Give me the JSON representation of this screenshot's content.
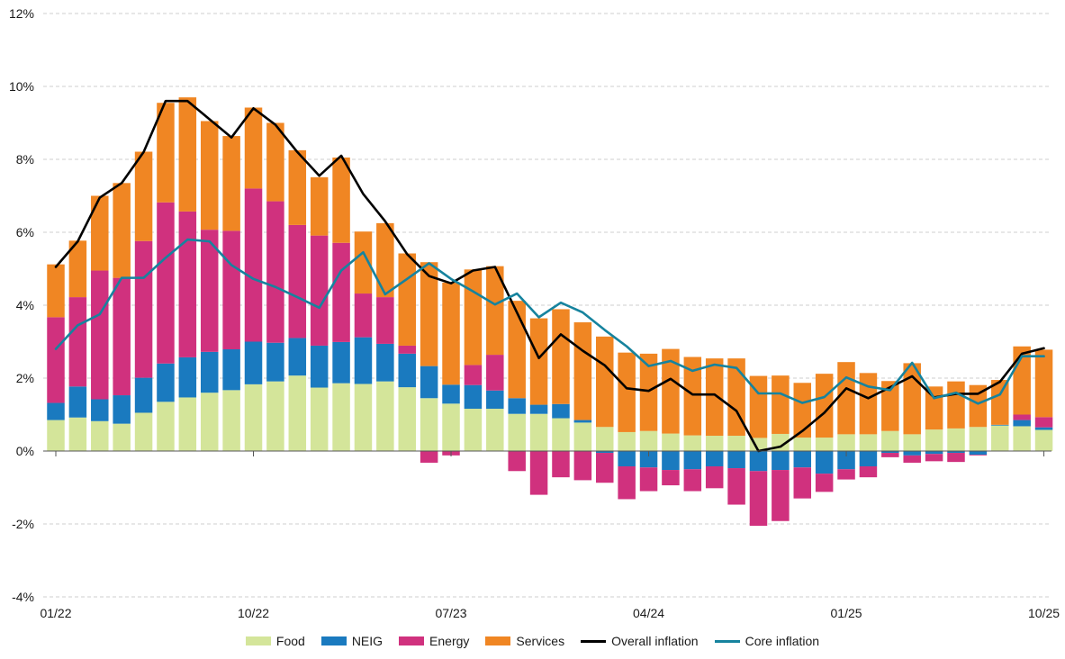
{
  "chart_data": {
    "type": "bar",
    "stacked": true,
    "y_axis": {
      "min": -4,
      "max": 12,
      "ticks": [
        "12%",
        "10%",
        "8%",
        "6%",
        "4%",
        "2%",
        "0%",
        "-2%",
        "-4%"
      ],
      "tick_values": [
        12,
        10,
        8,
        6,
        4,
        2,
        0,
        -2,
        -4
      ]
    },
    "x_ticks": [
      {
        "label": "01/22",
        "index": 0
      },
      {
        "label": "10/22",
        "index": 9
      },
      {
        "label": "07/23",
        "index": 18
      },
      {
        "label": "04/24",
        "index": 27
      },
      {
        "label": "01/25",
        "index": 36
      },
      {
        "label": "10/25",
        "index": 45
      }
    ],
    "grid": "horizontal dashed",
    "legend_position": "bottom",
    "series": [
      {
        "name": "Food",
        "kind": "bar",
        "color": "#d4e59a",
        "values": [
          0.85,
          0.92,
          0.82,
          0.75,
          1.05,
          1.35,
          1.47,
          1.6,
          1.67,
          1.83,
          1.91,
          2.07,
          1.74,
          1.86,
          1.84,
          1.91,
          1.75,
          1.45,
          1.3,
          1.16,
          1.16,
          1.02,
          1.02,
          0.9,
          0.78,
          0.66,
          0.52,
          0.55,
          0.48,
          0.43,
          0.42,
          0.42,
          0.36,
          0.47,
          0.37,
          0.37,
          0.46,
          0.46,
          0.55,
          0.46,
          0.59,
          0.62,
          0.66,
          0.7,
          0.68,
          0.58
        ]
      },
      {
        "name": "NEIG",
        "kind": "bar",
        "color": "#1a7abf",
        "values": [
          0.47,
          0.85,
          0.6,
          0.78,
          0.96,
          1.05,
          1.1,
          1.12,
          1.12,
          1.17,
          1.06,
          1.03,
          1.15,
          1.13,
          1.28,
          1.03,
          0.92,
          0.88,
          0.52,
          0.65,
          0.5,
          0.43,
          0.25,
          0.39,
          0.07,
          -0.05,
          -0.42,
          -0.45,
          -0.52,
          -0.5,
          -0.42,
          -0.47,
          -0.55,
          -0.52,
          -0.45,
          -0.62,
          -0.5,
          -0.42,
          -0.05,
          -0.12,
          -0.08,
          -0.05,
          -0.1,
          0.02,
          0.17,
          0.07
        ]
      },
      {
        "name": "Energy",
        "kind": "bar",
        "color": "#d0317e",
        "values": [
          2.35,
          2.45,
          3.53,
          3.22,
          3.75,
          4.42,
          4.0,
          3.35,
          3.25,
          4.2,
          3.88,
          3.1,
          3.02,
          2.72,
          1.2,
          1.28,
          0.22,
          -0.32,
          -0.12,
          0.55,
          0.98,
          -0.55,
          -1.2,
          -0.72,
          -0.8,
          -0.82,
          -0.9,
          -0.65,
          -0.42,
          -0.6,
          -0.6,
          -1.0,
          -1.5,
          -1.4,
          -0.85,
          -0.5,
          -0.28,
          -0.3,
          -0.12,
          -0.2,
          -0.2,
          -0.25,
          -0.02,
          0.0,
          0.15,
          0.28
        ]
      },
      {
        "name": "Services",
        "kind": "bar",
        "color": "#f08623",
        "values": [
          1.45,
          1.55,
          2.05,
          2.6,
          2.45,
          2.73,
          3.13,
          2.98,
          2.6,
          2.22,
          2.15,
          2.05,
          1.6,
          2.34,
          1.7,
          2.03,
          2.53,
          2.85,
          2.8,
          2.62,
          2.43,
          2.67,
          2.37,
          2.6,
          2.68,
          2.48,
          2.18,
          2.12,
          2.32,
          2.15,
          2.12,
          2.12,
          1.7,
          1.6,
          1.5,
          1.75,
          1.98,
          1.68,
          1.37,
          1.95,
          1.18,
          1.29,
          1.15,
          1.23,
          1.87,
          1.85
        ]
      },
      {
        "name": "Overall inflation",
        "kind": "line",
        "color": "#000000",
        "values": [
          5.05,
          5.75,
          6.95,
          7.35,
          8.2,
          9.6,
          9.6,
          9.1,
          8.6,
          9.4,
          8.95,
          8.2,
          7.55,
          8.1,
          7.05,
          6.3,
          5.4,
          4.8,
          4.6,
          4.95,
          5.05,
          3.8,
          2.55,
          3.2,
          2.75,
          2.35,
          1.72,
          1.65,
          1.98,
          1.55,
          1.55,
          1.1,
          0.0,
          0.12,
          0.55,
          1.05,
          1.72,
          1.45,
          1.75,
          2.05,
          1.47,
          1.57,
          1.57,
          1.9,
          2.67,
          2.82
        ]
      },
      {
        "name": "Core inflation",
        "kind": "line",
        "color": "#16839e",
        "values": [
          2.8,
          3.45,
          3.75,
          4.75,
          4.75,
          5.3,
          5.8,
          5.75,
          5.1,
          4.72,
          4.5,
          4.22,
          3.93,
          4.95,
          5.45,
          4.3,
          4.72,
          5.15,
          4.72,
          4.38,
          4.02,
          4.32,
          3.67,
          4.07,
          3.8,
          3.32,
          2.87,
          2.33,
          2.47,
          2.2,
          2.37,
          2.28,
          1.58,
          1.58,
          1.32,
          1.48,
          2.02,
          1.77,
          1.67,
          2.42,
          1.45,
          1.6,
          1.3,
          1.55,
          2.6,
          2.6
        ]
      }
    ]
  }
}
